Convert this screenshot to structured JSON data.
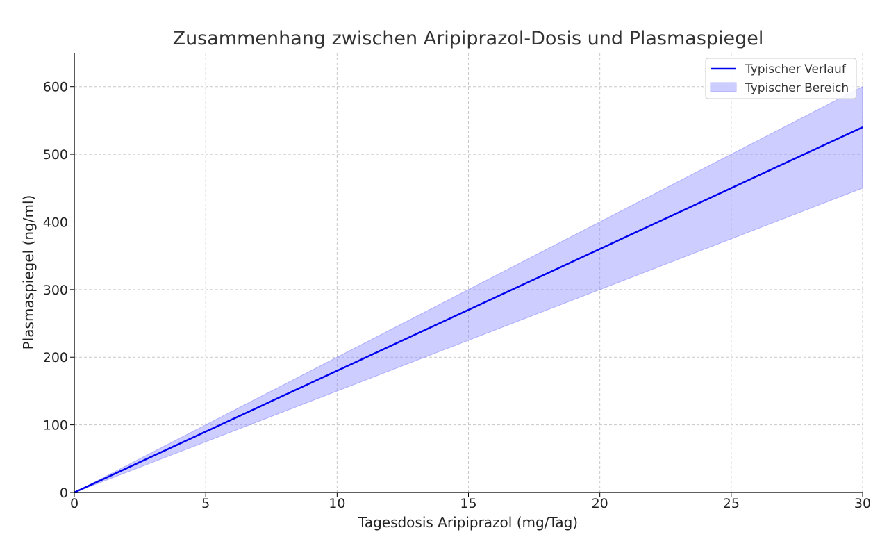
{
  "chart_data": {
    "type": "line",
    "title": "Zusammenhang zwischen Aripiprazol-Dosis und Plasmaspiegel",
    "xlabel": "Tagesdosis Aripiprazol (mg/Tag)",
    "ylabel": "Plasmaspiegel (ng/ml)",
    "xlim": [
      0,
      30
    ],
    "ylim": [
      0,
      650
    ],
    "xticks": [
      0,
      5,
      10,
      15,
      20,
      25,
      30
    ],
    "yticks": [
      0,
      100,
      200,
      300,
      400,
      500,
      600
    ],
    "grid": true,
    "legend_position": "top-right",
    "series": [
      {
        "name": "Typischer Verlauf",
        "kind": "line",
        "color": "#0000ee",
        "x": [
          0,
          30
        ],
        "y": [
          0,
          540
        ]
      }
    ],
    "bands": [
      {
        "name": "Typischer Bereich",
        "kind": "band",
        "color": "#8888ff",
        "x": [
          0,
          30
        ],
        "lower": [
          0,
          450
        ],
        "upper": [
          0,
          600
        ]
      }
    ]
  }
}
